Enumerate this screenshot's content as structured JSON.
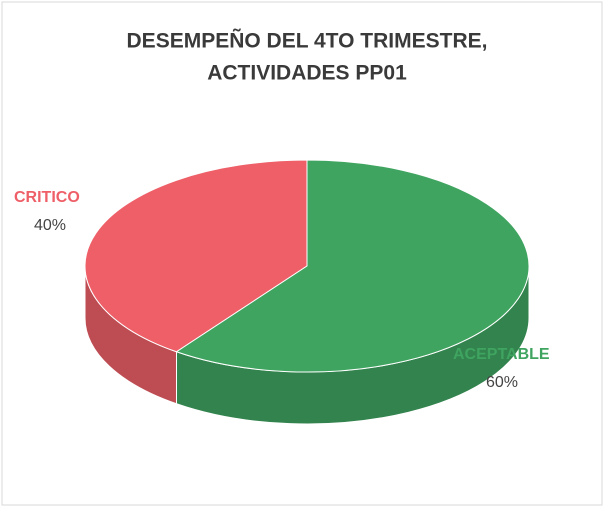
{
  "chart_data": {
    "type": "pie3d",
    "title": [
      "DESEMPEÑO DEL 4TO TRIMESTRE,",
      "ACTIVIDADES PP01"
    ],
    "categories": [
      "CRITICO",
      "ACEPTABLE"
    ],
    "values": [
      40,
      60
    ],
    "value_labels": [
      "40%",
      "60%"
    ],
    "colors": [
      "#ee5f68",
      "#3fa460"
    ]
  }
}
